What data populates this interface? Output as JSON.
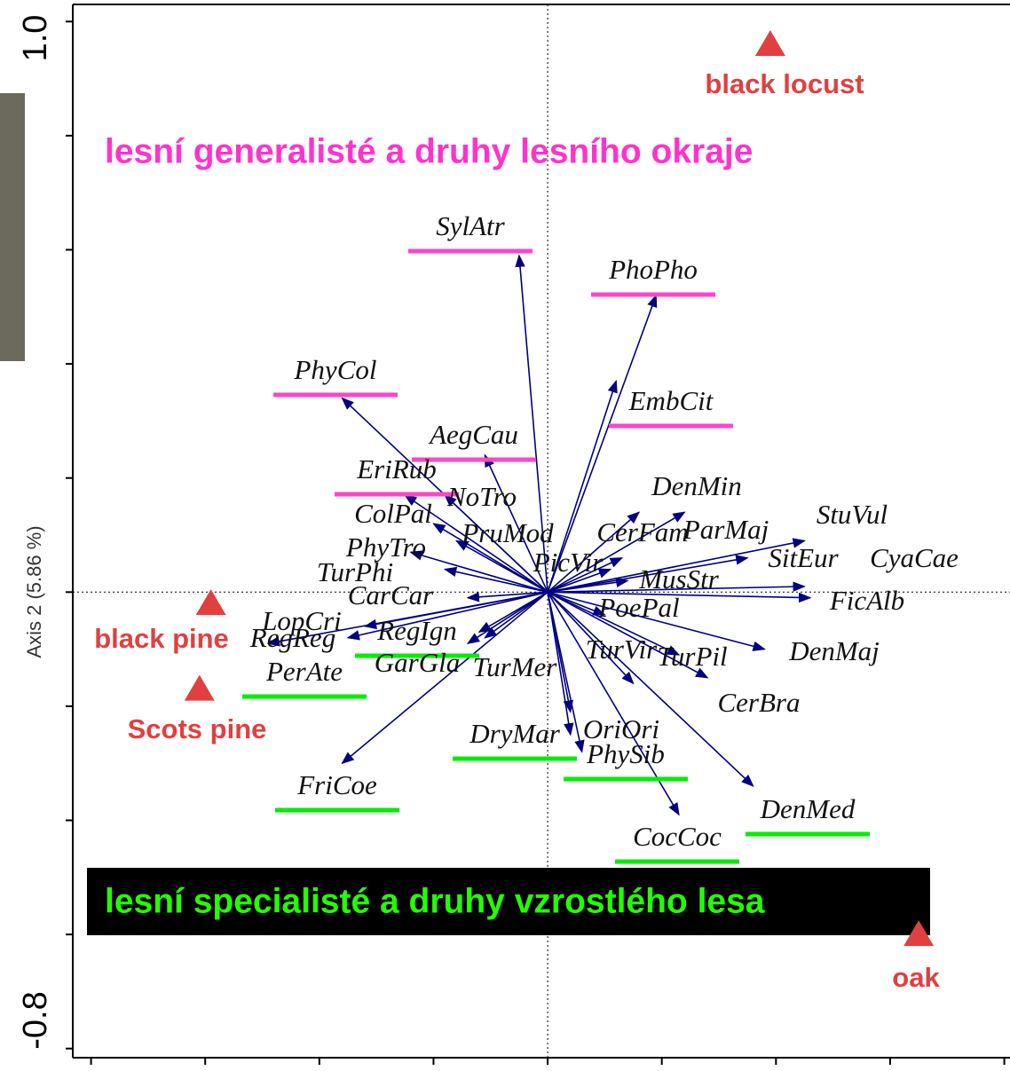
{
  "chart_data": {
    "type": "biplot",
    "y_label": "Axis 2 (5.86 %)",
    "xlim": [
      -0.832,
      0.81
    ],
    "ylim": [
      -0.816,
      1.03
    ],
    "yticks": [
      {
        "value": -0.8,
        "label": "-0.8"
      },
      {
        "value": 1.0,
        "label": "1.0"
      }
    ],
    "yminorticks": [
      -0.6,
      -0.4,
      -0.2,
      0,
      0.2,
      0.4,
      0.6,
      0.8
    ],
    "xminorticks": [
      -0.8,
      -0.6,
      -0.4,
      -0.2,
      0,
      0.2,
      0.4,
      0.6,
      0.8
    ],
    "zero_lines": true,
    "arrow_color": "#000080",
    "species": [
      {
        "name": "SylAtr",
        "x": -0.05,
        "y": 0.59,
        "underline": "#ff44cc"
      },
      {
        "name": "PhoPho",
        "x": 0.19,
        "y": 0.52,
        "underline": "#ff44cc"
      },
      {
        "name": "PhyCol",
        "x": -0.36,
        "y": 0.34,
        "underline": "#ff44cc"
      },
      {
        "name": "EmbCit",
        "x": 0.12,
        "y": 0.37,
        "underline": "#ff44cc"
      },
      {
        "name": "AegCau",
        "x": -0.11,
        "y": 0.24,
        "underline": "#ff44cc"
      },
      {
        "name": "EriRub",
        "x": -0.25,
        "y": 0.17,
        "underline": "#ff44cc"
      },
      {
        "name": "NoTro",
        "x": -0.18,
        "y": 0.17
      },
      {
        "name": "ColPal",
        "x": -0.2,
        "y": 0.12
      },
      {
        "name": "PhyTro",
        "x": -0.24,
        "y": 0.07
      },
      {
        "name": "PruMod",
        "x": -0.16,
        "y": 0.09
      },
      {
        "name": "TurPhi",
        "x": -0.18,
        "y": 0.04
      },
      {
        "name": "CarCar",
        "x": -0.14,
        "y": -0.01
      },
      {
        "name": "LopCri",
        "x": -0.32,
        "y": -0.06
      },
      {
        "name": "RegReg",
        "x": -0.35,
        "y": -0.08
      },
      {
        "name": "RegIgn",
        "x": -0.14,
        "y": -0.09,
        "underline": "#00ee00"
      },
      {
        "name": "GarGla",
        "x": -0.11,
        "y": -0.08
      },
      {
        "name": "PerAte",
        "x": -0.49,
        "y": -0.09,
        "underline": "#00ee00"
      },
      {
        "name": "FriCoe",
        "x": -0.36,
        "y": -0.3,
        "underline": "#00ee00"
      },
      {
        "name": "TurMer",
        "x": -0.12,
        "y": -0.07
      },
      {
        "name": "DryMar",
        "x": 0.04,
        "y": -0.25,
        "underline": "#00ee00"
      },
      {
        "name": "OriOri",
        "x": 0.06,
        "y": -0.28
      },
      {
        "name": "PhySib",
        "x": 0.04,
        "y": -0.21,
        "underline": "#00ee00"
      },
      {
        "name": "CocCoc",
        "x": 0.23,
        "y": -0.39,
        "underline": "#00ee00"
      },
      {
        "name": "DenMed",
        "x": 0.36,
        "y": -0.34,
        "underline": "#00ee00"
      },
      {
        "name": "TurVir",
        "x": 0.15,
        "y": -0.16
      },
      {
        "name": "TurPil",
        "x": 0.28,
        "y": -0.15
      },
      {
        "name": "CerBra",
        "x": 0.23,
        "y": -0.11
      },
      {
        "name": "DenMaj",
        "x": 0.38,
        "y": -0.1
      },
      {
        "name": "PoePal",
        "x": 0.1,
        "y": -0.04
      },
      {
        "name": "MusStr",
        "x": 0.14,
        "y": 0.02
      },
      {
        "name": "FicAlb",
        "x": 0.46,
        "y": -0.01
      },
      {
        "name": "CyaCae",
        "x": 0.45,
        "y": 0.01
      },
      {
        "name": "SitEur",
        "x": 0.35,
        "y": 0.06
      },
      {
        "name": "StuVul",
        "x": 0.45,
        "y": 0.09
      },
      {
        "name": "ParMaj",
        "x": 0.24,
        "y": 0.14
      },
      {
        "name": "CerFam",
        "x": 0.13,
        "y": 0.06
      },
      {
        "name": "DenMin",
        "x": 0.16,
        "y": 0.14
      },
      {
        "name": "PicVir",
        "x": 0.11,
        "y": 0.04
      }
    ],
    "env_color": "#e04040",
    "env": [
      {
        "name": "black locust",
        "x": 0.39,
        "y": 0.96
      },
      {
        "name": "black pine",
        "x": -0.59,
        "y": -0.02
      },
      {
        "name": "Scots pine",
        "x": -0.61,
        "y": -0.17
      },
      {
        "name": "oak",
        "x": 0.65,
        "y": -0.6
      }
    ],
    "annotations": [
      {
        "text": "lesní generalisté a druhy lesního okraje",
        "color": "#ff33cc"
      },
      {
        "text": "lesní specialisté a druhy vzrostlého lesa",
        "color": "#22ff00",
        "background": "#000000"
      }
    ]
  }
}
